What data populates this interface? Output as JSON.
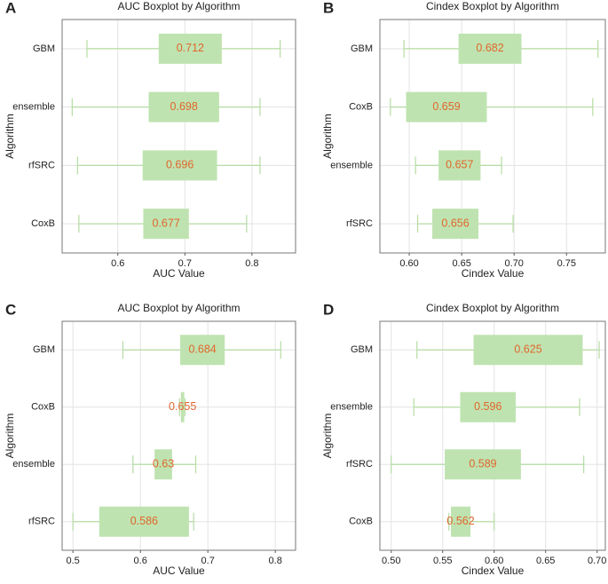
{
  "chart_data": [
    {
      "type": "boxplot",
      "panel_label": "A",
      "title": "AUC Boxplot by Algorithm",
      "xlabel": "AUC Value",
      "ylabel": "Algorithm",
      "categories": [
        "GBM",
        "ensemble",
        "rfSRC",
        "CoxB"
      ],
      "whisker_low": [
        0.554,
        0.532,
        0.54,
        0.542
      ],
      "q1": [
        0.661,
        0.646,
        0.637,
        0.638
      ],
      "q3": [
        0.755,
        0.751,
        0.748,
        0.706
      ],
      "whisker_high": [
        0.842,
        0.812,
        0.812,
        0.792
      ],
      "values": [
        0.712,
        0.698,
        0.696,
        0.677
      ],
      "xlim": [
        0.517,
        0.865
      ],
      "xticks": [
        0.6,
        0.7,
        0.8
      ],
      "grid": true,
      "box_color": "#bfe3b0",
      "whisker_color": "#b5dca3",
      "label_color": "#e0662c"
    },
    {
      "type": "boxplot",
      "panel_label": "B",
      "title": "Cindex Boxplot by Algorithm",
      "xlabel": "Cindex Value",
      "ylabel": "Algorithm",
      "categories": [
        "GBM",
        "CoxB",
        "ensemble",
        "rfSRC"
      ],
      "whisker_low": [
        0.595,
        0.582,
        0.606,
        0.608
      ],
      "q1": [
        0.647,
        0.597,
        0.628,
        0.622
      ],
      "q3": [
        0.707,
        0.674,
        0.668,
        0.666
      ],
      "whisker_high": [
        0.78,
        0.775,
        0.688,
        0.699
      ],
      "values": [
        0.682,
        0.659,
        0.657,
        0.656
      ],
      "xlim": [
        0.572,
        0.787
      ],
      "xticks": [
        {
          "value": 0.6,
          "label": "0.60"
        },
        0.65,
        {
          "value": 0.7,
          "label": "0.70"
        },
        0.75
      ],
      "grid": true,
      "box_color": "#bfe3b0",
      "whisker_color": "#b5dca3",
      "label_color": "#e0662c"
    },
    {
      "type": "boxplot",
      "panel_label": "C",
      "title": "AUC Boxplot by Algorithm",
      "xlabel": "AUC Value",
      "ylabel": "Algorithm",
      "categories": [
        "GBM",
        "CoxB",
        "ensemble",
        "rfSRC"
      ],
      "whisker_low": [
        0.574,
        0.658,
        0.589,
        0.5
      ],
      "q1": [
        0.659,
        0.66,
        0.621,
        0.539
      ],
      "q3": [
        0.725,
        0.665,
        0.647,
        0.672
      ],
      "whisker_high": [
        0.808,
        0.666,
        0.682,
        0.679
      ],
      "values": [
        0.684,
        0.655,
        0.63,
        0.586
      ],
      "xlim": [
        0.484,
        0.83
      ],
      "xticks": [
        0.5,
        0.6,
        0.7,
        0.8
      ],
      "grid": true,
      "box_color": "#bfe3b0",
      "whisker_color": "#b5dca3",
      "label_color": "#e0662c"
    },
    {
      "type": "boxplot",
      "panel_label": "D",
      "title": "Cindex Boxplot by Algorithm",
      "xlabel": "Cindex Value",
      "ylabel": "Algorithm",
      "categories": [
        "GBM",
        "ensemble",
        "rfSRC",
        "CoxB"
      ],
      "whisker_low": [
        0.525,
        0.522,
        0.5,
        0.556
      ],
      "q1": [
        0.58,
        0.567,
        0.552,
        0.558
      ],
      "q3": [
        0.686,
        0.621,
        0.626,
        0.577
      ],
      "whisker_high": [
        0.702,
        0.683,
        0.687,
        0.6
      ],
      "values": [
        0.625,
        0.596,
        0.589,
        0.562
      ],
      "xlim": [
        0.489,
        0.708
      ],
      "xticks": [
        {
          "value": 0.5,
          "label": "0.50"
        },
        0.55,
        {
          "value": 0.6,
          "label": "0.60"
        },
        0.65,
        {
          "value": 0.7,
          "label": "0.70"
        }
      ],
      "grid": true,
      "box_color": "#bfe3b0",
      "whisker_color": "#b5dca3",
      "label_color": "#e0662c"
    }
  ]
}
